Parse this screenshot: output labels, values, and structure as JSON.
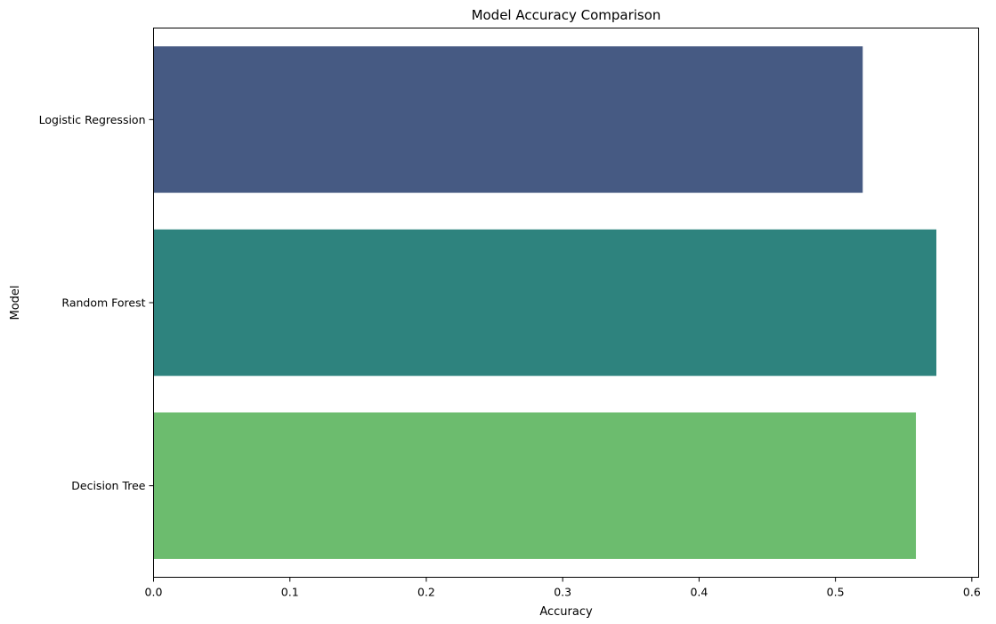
{
  "chart_data": {
    "type": "bar",
    "orientation": "horizontal",
    "title": "Model Accuracy Comparison",
    "xlabel": "Accuracy",
    "ylabel": "Model",
    "categories": [
      "Logistic Regression",
      "Random Forest",
      "Decision Tree"
    ],
    "values": [
      0.52,
      0.574,
      0.559
    ],
    "colors": [
      "#472d7b",
      "#21918c",
      "#5ec962"
    ],
    "display_colors": [
      "#465a83",
      "#2e837e",
      "#6cbc6e"
    ],
    "xlim": [
      0,
      0.605
    ],
    "xticks": [
      0.0,
      0.1,
      0.2,
      0.3,
      0.4,
      0.5,
      0.6
    ],
    "xtick_labels": [
      "0.0",
      "0.1",
      "0.2",
      "0.3",
      "0.4",
      "0.5",
      "0.6"
    ],
    "grid": false,
    "legend": "none"
  }
}
